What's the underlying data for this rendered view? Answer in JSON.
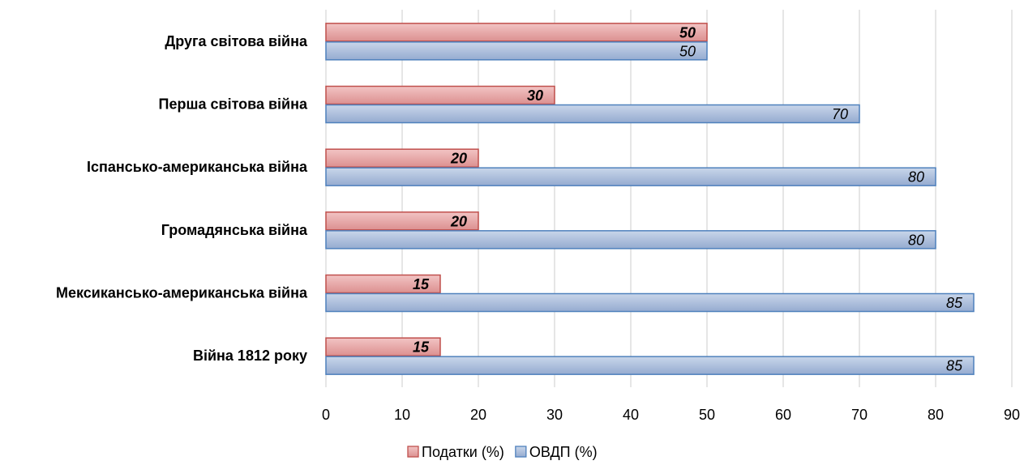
{
  "chart_data": {
    "type": "bar",
    "orientation": "horizontal",
    "categories": [
      "Друга світова війна",
      "Перша світова війна",
      "Іспансько-американська війна",
      "Громадянська війна",
      "Мексикансько-американська війна",
      "Війна 1812 року"
    ],
    "series": [
      {
        "name": "Податки (%)",
        "values": [
          50,
          30,
          20,
          20,
          15,
          15
        ],
        "fill": "#e6a3a3",
        "stroke": "#c0504d",
        "label_weight": "bold"
      },
      {
        "name": "ОВДП (%)",
        "values": [
          50,
          70,
          80,
          80,
          85,
          85
        ],
        "fill": "#a9bcd9",
        "stroke": "#4f81bd",
        "label_weight": "normal"
      }
    ],
    "x_ticks": [
      "0",
      "10",
      "20",
      "30",
      "40",
      "50",
      "60",
      "70",
      "80",
      "90"
    ],
    "xlim": [
      0,
      90
    ],
    "grid": "vertical",
    "legend_position": "bottom",
    "gridline_color": "#d9d9d9"
  }
}
